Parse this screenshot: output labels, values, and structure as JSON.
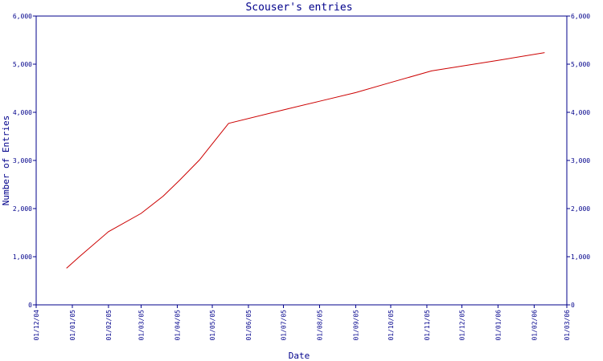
{
  "chart_data": {
    "type": "line",
    "title": "Scouser's entries",
    "xlabel": "Date",
    "ylabel": "Number of Entries",
    "xlim": [
      "2004-12-01",
      "2006-03-01"
    ],
    "ylim": [
      0,
      6000
    ],
    "x_ticks": [
      "01/12/04",
      "01/01/05",
      "01/02/05",
      "01/03/05",
      "01/04/05",
      "01/05/05",
      "01/06/05",
      "01/07/05",
      "01/08/05",
      "01/09/05",
      "01/10/05",
      "01/11/05",
      "01/12/05",
      "01/01/06",
      "01/02/06",
      "01/03/06"
    ],
    "x_tick_dates": [
      "2004-12-01",
      "2005-01-01",
      "2005-02-01",
      "2005-03-01",
      "2005-04-01",
      "2005-05-01",
      "2005-06-01",
      "2005-07-01",
      "2005-08-01",
      "2005-09-01",
      "2005-10-01",
      "2005-11-01",
      "2005-12-01",
      "2006-01-01",
      "2006-02-01",
      "2006-03-01"
    ],
    "y_ticks": [
      0,
      1000,
      2000,
      3000,
      4000,
      5000,
      6000
    ],
    "y_tick_labels": [
      "0",
      "1,000",
      "2,000",
      "3,000",
      "4,000",
      "5,000",
      "6,000"
    ],
    "grid": false,
    "series": [
      {
        "color": "#cc0000",
        "x": [
          "2004-12-27",
          "2005-01-07",
          "2005-02-01",
          "2005-03-01",
          "2005-03-20",
          "2005-04-03",
          "2005-04-20",
          "2005-05-15",
          "2005-07-01",
          "2005-08-01",
          "2005-09-01",
          "2005-10-01",
          "2005-11-05",
          "2005-12-01",
          "2006-01-01",
          "2006-02-10"
        ],
        "y": [
          760,
          1000,
          1520,
          1900,
          2260,
          2590,
          3010,
          3770,
          4050,
          4230,
          4410,
          4620,
          4860,
          4960,
          5080,
          5240
        ]
      }
    ]
  }
}
